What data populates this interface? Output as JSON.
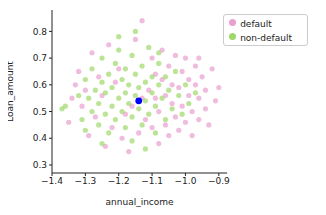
{
  "chart_data": {
    "type": "scatter",
    "x_label": "annual_income",
    "y_label": "Loan_amount",
    "xlim": [
      -1.4,
      -0.875
    ],
    "ylim": [
      0.27,
      0.88
    ],
    "xticks": [
      {
        "value": -1.4,
        "label": "−1.4"
      },
      {
        "value": -1.3,
        "label": "−1.3"
      },
      {
        "value": -1.2,
        "label": "−1.2"
      },
      {
        "value": -1.1,
        "label": "−1.1"
      },
      {
        "value": -1.0,
        "label": "−1.0"
      },
      {
        "value": -0.9,
        "label": "−0.9"
      }
    ],
    "yticks": [
      0.3,
      0.4,
      0.5,
      0.6,
      0.7,
      0.8
    ],
    "grid": false,
    "legend": "upper right",
    "series": [
      {
        "name": "default",
        "color": "#e99fcf",
        "x": [
          -1.35,
          -1.33,
          -1.32,
          -1.31,
          -1.29,
          -1.28,
          -1.27,
          -1.26,
          -1.24,
          -1.23,
          -1.22,
          -1.21,
          -1.19,
          -1.17,
          -1.15,
          -1.14,
          -1.13,
          -1.12,
          -1.11,
          -1.1,
          -1.1,
          -1.09,
          -1.08,
          -1.08,
          -1.07,
          -1.07,
          -1.06,
          -1.06,
          -1.05,
          -1.05,
          -1.04,
          -1.04,
          -1.03,
          -1.03,
          -1.02,
          -1.02,
          -1.01,
          -1.01,
          -1.0,
          -1.0,
          -0.99,
          -0.99,
          -0.98,
          -0.98,
          -0.97,
          -0.97,
          -0.96,
          -0.96,
          -0.95,
          -0.94,
          -0.94,
          -0.93,
          -0.92,
          -0.91,
          -0.9,
          -0.96,
          -1.16,
          -1.2,
          -1.25,
          -1.18,
          -1.13,
          -1.09,
          -1.34,
          -1.3
        ],
        "y": [
          0.46,
          0.6,
          0.65,
          0.52,
          0.41,
          0.72,
          0.48,
          0.63,
          0.37,
          0.75,
          0.44,
          0.61,
          0.4,
          0.35,
          0.77,
          0.42,
          0.84,
          0.47,
          0.58,
          0.44,
          0.7,
          0.55,
          0.38,
          0.5,
          0.62,
          0.73,
          0.45,
          0.56,
          0.41,
          0.67,
          0.53,
          0.6,
          0.48,
          0.71,
          0.43,
          0.59,
          0.52,
          0.65,
          0.46,
          0.7,
          0.56,
          0.62,
          0.41,
          0.5,
          0.6,
          0.67,
          0.47,
          0.55,
          0.63,
          0.51,
          0.58,
          0.45,
          0.66,
          0.54,
          0.59,
          0.7,
          0.52,
          0.66,
          0.56,
          0.49,
          0.55,
          0.64,
          0.55,
          0.58
        ]
      },
      {
        "name": "non-default",
        "color": "#9fd86a",
        "x": [
          -1.37,
          -1.36,
          -1.32,
          -1.31,
          -1.3,
          -1.29,
          -1.28,
          -1.28,
          -1.27,
          -1.26,
          -1.26,
          -1.25,
          -1.25,
          -1.24,
          -1.24,
          -1.23,
          -1.23,
          -1.22,
          -1.22,
          -1.21,
          -1.21,
          -1.2,
          -1.2,
          -1.19,
          -1.19,
          -1.18,
          -1.18,
          -1.18,
          -1.17,
          -1.17,
          -1.16,
          -1.16,
          -1.16,
          -1.15,
          -1.15,
          -1.14,
          -1.14,
          -1.13,
          -1.13,
          -1.12,
          -1.12,
          -1.11,
          -1.11,
          -1.1,
          -1.1,
          -1.09,
          -1.09,
          -1.08,
          -1.08,
          -1.07,
          -1.06,
          -1.06,
          -1.05,
          -1.04,
          -1.03,
          -1.02,
          -1.01,
          -1.0,
          -0.99,
          -0.97,
          -1.2,
          -1.15,
          -1.25,
          -1.12,
          -1.3,
          -1.08
        ],
        "y": [
          0.51,
          0.52,
          0.56,
          0.47,
          0.62,
          0.55,
          0.5,
          0.66,
          0.58,
          0.45,
          0.53,
          0.61,
          0.7,
          0.49,
          0.57,
          0.42,
          0.64,
          0.52,
          0.59,
          0.47,
          0.68,
          0.55,
          0.73,
          0.5,
          0.62,
          0.44,
          0.57,
          0.66,
          0.53,
          0.6,
          0.39,
          0.48,
          0.71,
          0.56,
          0.64,
          0.51,
          0.59,
          0.45,
          0.67,
          0.54,
          0.61,
          0.49,
          0.74,
          0.57,
          0.63,
          0.52,
          0.42,
          0.6,
          0.68,
          0.55,
          0.47,
          0.63,
          0.58,
          0.51,
          0.65,
          0.56,
          0.49,
          0.6,
          0.53,
          0.57,
          0.78,
          0.8,
          0.38,
          0.36,
          0.43,
          0.72
        ]
      },
      {
        "color": "#0000ff",
        "x": [
          -1.14
        ],
        "y": [
          0.54
        ]
      }
    ]
  }
}
